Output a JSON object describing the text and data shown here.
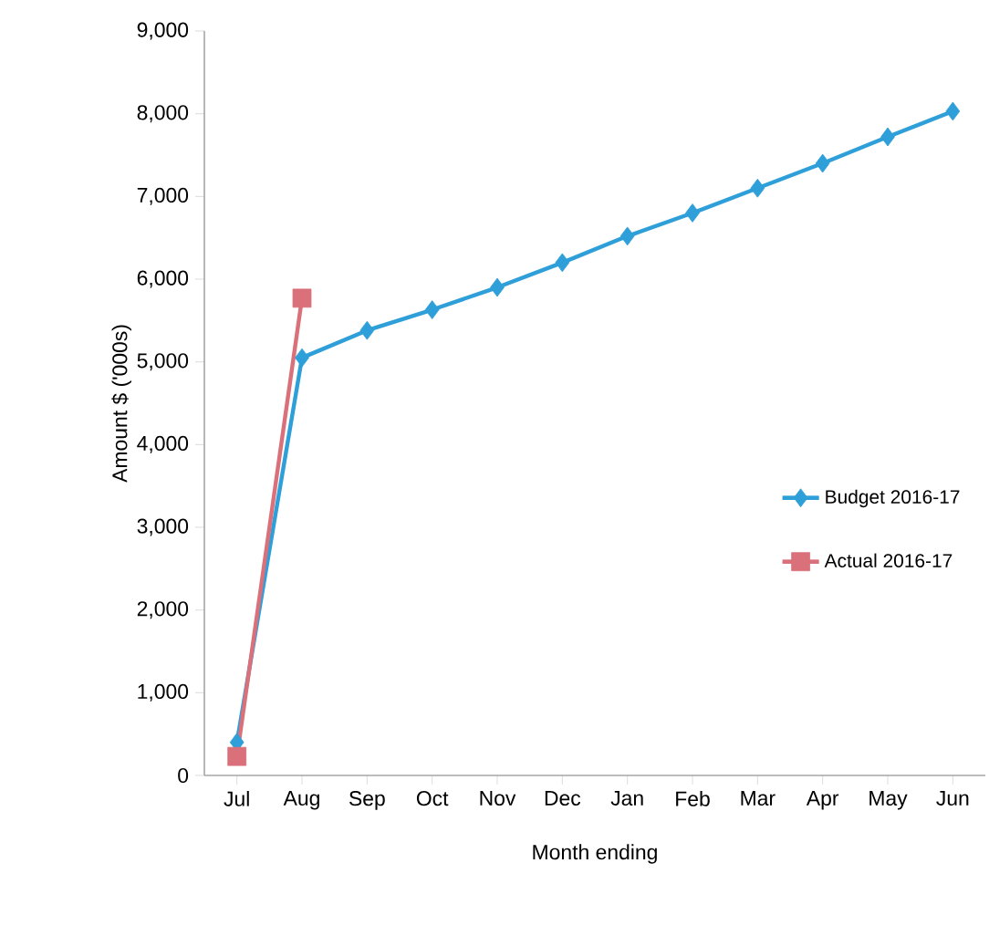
{
  "chart_data": {
    "type": "line",
    "xlabel": "Month ending",
    "ylabel": "Amount $ ('000s)",
    "categories": [
      "Jul",
      "Aug",
      "Sep",
      "Oct",
      "Nov",
      "Dec",
      "Jan",
      "Feb",
      "Mar",
      "Apr",
      "May",
      "Jun"
    ],
    "series": [
      {
        "name": "Budget 2016-17",
        "color": "#2e9fd8",
        "marker": "diamond",
        "values": [
          400,
          5050,
          5380,
          5630,
          5900,
          6200,
          6520,
          6800,
          7100,
          7400,
          7720,
          8030
        ]
      },
      {
        "name": "Actual 2016-17",
        "color": "#d9707a",
        "marker": "square",
        "values": [
          230,
          5770,
          null,
          null,
          null,
          null,
          null,
          null,
          null,
          null,
          null,
          null
        ]
      }
    ],
    "ylim": [
      0,
      9000
    ],
    "yticks": [
      {
        "value": 0,
        "label": "0"
      },
      {
        "value": 1000,
        "label": "1,000"
      },
      {
        "value": 2000,
        "label": "2,000"
      },
      {
        "value": 3000,
        "label": "3,000"
      },
      {
        "value": 4000,
        "label": "4,000"
      },
      {
        "value": 5000,
        "label": "5,000"
      },
      {
        "value": 6000,
        "label": "6,000"
      },
      {
        "value": 7000,
        "label": "7,000"
      },
      {
        "value": 8000,
        "label": "8,000"
      },
      {
        "value": 9000,
        "label": "9,000"
      }
    ],
    "grid": false,
    "legend": "right"
  }
}
